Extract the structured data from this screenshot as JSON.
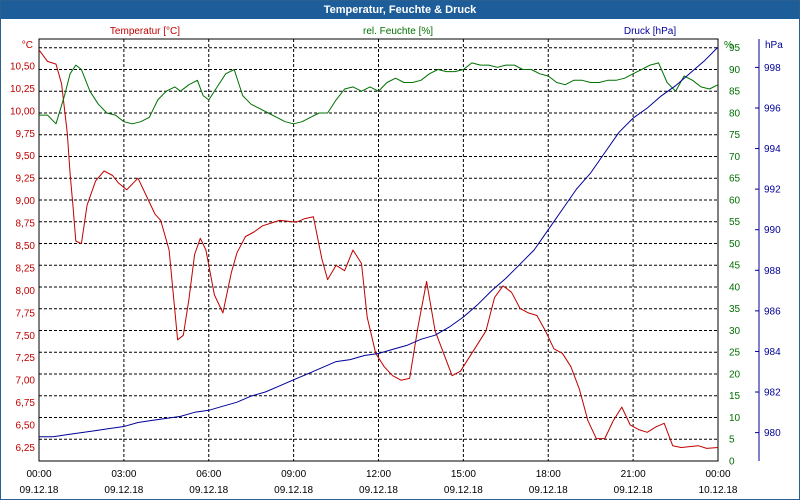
{
  "window": {
    "title": "Temperatur, Feuchte & Druck"
  },
  "colors": {
    "temperature": "#c00000",
    "humidity": "#007000",
    "pressure": "#000099",
    "titlebar": "#1d5d9a"
  },
  "chart_data": {
    "type": "line",
    "title": "Temperatur, Feuchte & Druck",
    "x_ticks": [
      {
        "time": "00:00",
        "date": "09.12.18"
      },
      {
        "time": "03:00",
        "date": "09.12.18"
      },
      {
        "time": "06:00",
        "date": "09.12.18"
      },
      {
        "time": "09:00",
        "date": "09.12.18"
      },
      {
        "time": "12:00",
        "date": "09.12.18"
      },
      {
        "time": "15:00",
        "date": "09.12.18"
      },
      {
        "time": "18:00",
        "date": "09.12.18"
      },
      {
        "time": "21:00",
        "date": "09.12.18"
      },
      {
        "time": "00:00",
        "date": "10.12.18"
      }
    ],
    "xlim": [
      0,
      24
    ],
    "axes": {
      "temperature": {
        "label": "Temperatur [°C]",
        "unit": "°C",
        "ylim": [
          6.1,
          10.8
        ],
        "ticks": [
          "10,50",
          "10,25",
          "10,00",
          "9,75",
          "9,50",
          "9,25",
          "9,00",
          "8,75",
          "8,50",
          "8,25",
          "8,00",
          "7,75",
          "7,50",
          "7,25",
          "7,00",
          "6,75",
          "6,50",
          "6,25"
        ]
      },
      "humidity": {
        "label": "rel. Feuchte [%]",
        "unit": "%",
        "ylim": [
          0,
          97
        ],
        "ticks": [
          "95",
          "90",
          "85",
          "80",
          "75",
          "70",
          "65",
          "60",
          "55",
          "50",
          "45",
          "40",
          "35",
          "30",
          "25",
          "20",
          "15",
          "10",
          "5",
          "0"
        ]
      },
      "pressure": {
        "label": "Druck [hPa]",
        "unit": "hPa",
        "ylim": [
          978.6,
          999.4
        ],
        "ticks": [
          "998",
          "996",
          "994",
          "992",
          "990",
          "988",
          "986",
          "984",
          "982",
          "980"
        ]
      }
    },
    "series": [
      {
        "name": "Temperatur",
        "axis": "temperature",
        "x": [
          0,
          0.3,
          0.6,
          0.8,
          1.0,
          1.1,
          1.2,
          1.3,
          1.5,
          1.7,
          2.0,
          2.3,
          2.6,
          2.8,
          3.1,
          3.5,
          3.8,
          4.1,
          4.3,
          4.6,
          4.9,
          5.1,
          5.3,
          5.5,
          5.7,
          5.9,
          6.2,
          6.5,
          6.8,
          7.0,
          7.3,
          7.6,
          7.9,
          8.2,
          8.5,
          8.8,
          9.1,
          9.4,
          9.7,
          10.0,
          10.2,
          10.5,
          10.8,
          11.1,
          11.4,
          11.6,
          11.9,
          12.2,
          12.5,
          12.8,
          13.1,
          13.4,
          13.7,
          14.0,
          14.3,
          14.6,
          14.9,
          15.2,
          15.5,
          15.8,
          16.1,
          16.4,
          16.7,
          17.0,
          17.3,
          17.6,
          17.9,
          18.2,
          18.5,
          18.8,
          19.1,
          19.4,
          19.7,
          20.0,
          20.3,
          20.6,
          20.9,
          21.2,
          21.5,
          21.8,
          22.1,
          22.4,
          22.7,
          23.0,
          23.3,
          23.6,
          24.0
        ],
        "values": [
          10.68,
          10.55,
          10.52,
          10.3,
          9.75,
          9.3,
          8.95,
          8.55,
          8.52,
          8.95,
          9.22,
          9.33,
          9.28,
          9.2,
          9.12,
          9.25,
          9.05,
          8.85,
          8.78,
          8.45,
          7.45,
          7.5,
          7.9,
          8.4,
          8.58,
          8.45,
          7.95,
          7.75,
          8.2,
          8.42,
          8.6,
          8.65,
          8.72,
          8.75,
          8.78,
          8.77,
          8.76,
          8.8,
          8.82,
          8.35,
          8.12,
          8.28,
          8.22,
          8.45,
          8.3,
          7.7,
          7.3,
          7.15,
          7.05,
          7.0,
          7.02,
          7.6,
          8.1,
          7.55,
          7.3,
          7.05,
          7.1,
          7.25,
          7.4,
          7.55,
          7.92,
          8.05,
          7.98,
          7.8,
          7.75,
          7.72,
          7.55,
          7.35,
          7.3,
          7.15,
          6.9,
          6.55,
          6.35,
          6.35,
          6.55,
          6.7,
          6.5,
          6.45,
          6.42,
          6.48,
          6.52,
          6.27,
          6.25,
          6.26,
          6.27,
          6.24,
          6.25
        ]
      },
      {
        "name": "rel. Feuchte",
        "axis": "humidity",
        "x": [
          0,
          0.3,
          0.6,
          0.9,
          1.1,
          1.3,
          1.5,
          1.8,
          2.1,
          2.4,
          2.7,
          3.0,
          3.3,
          3.6,
          3.9,
          4.2,
          4.5,
          4.8,
          5.0,
          5.3,
          5.6,
          5.8,
          6.0,
          6.3,
          6.6,
          6.9,
          7.2,
          7.5,
          7.8,
          8.1,
          8.4,
          8.7,
          9.0,
          9.3,
          9.6,
          9.9,
          10.2,
          10.5,
          10.8,
          11.1,
          11.4,
          11.7,
          12.0,
          12.3,
          12.6,
          12.9,
          13.2,
          13.5,
          13.8,
          14.1,
          14.4,
          14.7,
          15.0,
          15.3,
          15.6,
          15.9,
          16.2,
          16.5,
          16.8,
          17.1,
          17.4,
          17.7,
          18.0,
          18.3,
          18.6,
          18.9,
          19.2,
          19.5,
          19.8,
          20.1,
          20.4,
          20.7,
          21.0,
          21.3,
          21.6,
          21.9,
          22.2,
          22.5,
          22.8,
          23.1,
          23.4,
          23.7,
          24.0
        ],
        "values": [
          79.5,
          79.5,
          77.5,
          84,
          89,
          91,
          90,
          85,
          82,
          80,
          79.5,
          78,
          77.5,
          78,
          79,
          83,
          85,
          86,
          85,
          86.5,
          87.5,
          84,
          83,
          86,
          89,
          90,
          84,
          82,
          81,
          80,
          79,
          78,
          77.5,
          78,
          79,
          80,
          80,
          83,
          85.5,
          86,
          85,
          86,
          85,
          87,
          88,
          87,
          87,
          87.5,
          89,
          90,
          89.5,
          89.5,
          90,
          91.5,
          91,
          91,
          90.5,
          91,
          91,
          90,
          90,
          89,
          88.5,
          87,
          86.5,
          87.5,
          87.5,
          87,
          87,
          87.5,
          87.5,
          88,
          89,
          90,
          91,
          91.5,
          87,
          85,
          88.5,
          87.5,
          86,
          85.5,
          86.5
        ]
      },
      {
        "name": "Druck",
        "axis": "pressure",
        "x": [
          0,
          0.5,
          1.0,
          1.5,
          2.0,
          2.5,
          3.0,
          3.5,
          4.0,
          4.5,
          5.0,
          5.5,
          6.0,
          6.5,
          7.0,
          7.5,
          8.0,
          8.5,
          9.0,
          9.5,
          10.0,
          10.5,
          11.0,
          11.5,
          12.0,
          12.5,
          13.0,
          13.5,
          14.0,
          14.5,
          15.0,
          15.5,
          16.0,
          16.5,
          17.0,
          17.5,
          18.0,
          18.5,
          19.0,
          19.5,
          20.0,
          20.5,
          21.0,
          21.5,
          22.0,
          22.5,
          23.0,
          23.5,
          24.0
        ],
        "values": [
          979.8,
          979.8,
          979.9,
          980.0,
          980.1,
          980.2,
          980.3,
          980.5,
          980.6,
          980.7,
          980.8,
          981.0,
          981.1,
          981.3,
          981.5,
          981.8,
          982.0,
          982.3,
          982.6,
          982.9,
          983.2,
          983.5,
          983.6,
          983.8,
          983.9,
          984.1,
          984.3,
          984.6,
          984.8,
          985.2,
          985.7,
          986.3,
          987.0,
          987.6,
          988.3,
          989.0,
          990.0,
          991.0,
          992.0,
          992.8,
          993.8,
          994.8,
          995.5,
          996.0,
          996.6,
          997.1,
          997.7,
          998.3,
          999.0
        ]
      }
    ]
  }
}
